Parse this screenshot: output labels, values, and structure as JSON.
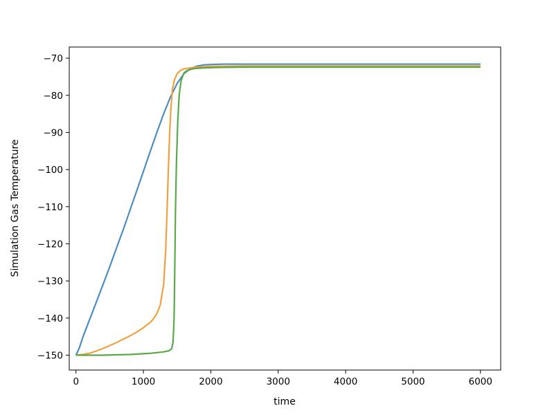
{
  "chart_data": {
    "type": "line",
    "title": "",
    "xlabel": "time",
    "ylabel": "Simulation Gas Temperature",
    "xlim": [
      -100,
      6300
    ],
    "ylim": [
      -154,
      -67
    ],
    "xticks": [
      0,
      1000,
      2000,
      3000,
      4000,
      5000,
      6000
    ],
    "yticks": [
      -70,
      -80,
      -90,
      -100,
      -110,
      -120,
      -130,
      -140,
      -150
    ],
    "xtick_labels": [
      "0",
      "1000",
      "2000",
      "3000",
      "4000",
      "5000",
      "6000"
    ],
    "ytick_labels": [
      "−70",
      "−80",
      "−90",
      "−100",
      "−110",
      "−120",
      "−130",
      "−140",
      "−150"
    ],
    "grid": false,
    "legend": "none",
    "series": [
      {
        "color": "#4c8dc1",
        "points": [
          [
            0,
            -150
          ],
          [
            50,
            -148
          ],
          [
            100,
            -145.2
          ],
          [
            200,
            -140.5
          ],
          [
            300,
            -135.8
          ],
          [
            400,
            -131
          ],
          [
            500,
            -126.2
          ],
          [
            600,
            -121.2
          ],
          [
            700,
            -116.2
          ],
          [
            800,
            -111
          ],
          [
            900,
            -105.8
          ],
          [
            1000,
            -100.5
          ],
          [
            1100,
            -95.2
          ],
          [
            1200,
            -90
          ],
          [
            1300,
            -85
          ],
          [
            1400,
            -80.5
          ],
          [
            1500,
            -76.8
          ],
          [
            1600,
            -74.2
          ],
          [
            1700,
            -72.8
          ],
          [
            1800,
            -72.1
          ],
          [
            1900,
            -71.8
          ],
          [
            2000,
            -71.7
          ],
          [
            2200,
            -71.6
          ],
          [
            2500,
            -71.6
          ],
          [
            3000,
            -71.6
          ],
          [
            4000,
            -71.6
          ],
          [
            5000,
            -71.6
          ],
          [
            6000,
            -71.6
          ]
        ]
      },
      {
        "color": "#f0a040",
        "points": [
          [
            0,
            -150
          ],
          [
            100,
            -149.8
          ],
          [
            200,
            -149.5
          ],
          [
            300,
            -148.9
          ],
          [
            400,
            -148.2
          ],
          [
            500,
            -147.4
          ],
          [
            600,
            -146.6
          ],
          [
            700,
            -145.7
          ],
          [
            800,
            -144.8
          ],
          [
            900,
            -143.8
          ],
          [
            1000,
            -142.6
          ],
          [
            1100,
            -141.2
          ],
          [
            1150,
            -140.2
          ],
          [
            1200,
            -138.8
          ],
          [
            1250,
            -136.5
          ],
          [
            1300,
            -131
          ],
          [
            1330,
            -122
          ],
          [
            1350,
            -112
          ],
          [
            1370,
            -100
          ],
          [
            1390,
            -90
          ],
          [
            1410,
            -83
          ],
          [
            1430,
            -78.5
          ],
          [
            1460,
            -75.8
          ],
          [
            1500,
            -74.2
          ],
          [
            1550,
            -73.3
          ],
          [
            1600,
            -72.9
          ],
          [
            1700,
            -72.6
          ],
          [
            1800,
            -72.4
          ],
          [
            2000,
            -72.2
          ],
          [
            2500,
            -72.1
          ],
          [
            3000,
            -72.1
          ],
          [
            4000,
            -72.1
          ],
          [
            5000,
            -72.1
          ],
          [
            6000,
            -72.1
          ]
        ]
      },
      {
        "color": "#5aa84a",
        "points": [
          [
            0,
            -150
          ],
          [
            200,
            -150
          ],
          [
            400,
            -150
          ],
          [
            600,
            -149.9
          ],
          [
            800,
            -149.8
          ],
          [
            1000,
            -149.6
          ],
          [
            1100,
            -149.5
          ],
          [
            1200,
            -149.3
          ],
          [
            1300,
            -149.1
          ],
          [
            1380,
            -148.8
          ],
          [
            1420,
            -148.2
          ],
          [
            1440,
            -146.5
          ],
          [
            1455,
            -140
          ],
          [
            1465,
            -128
          ],
          [
            1475,
            -112
          ],
          [
            1490,
            -98
          ],
          [
            1510,
            -87
          ],
          [
            1530,
            -80
          ],
          [
            1560,
            -76
          ],
          [
            1600,
            -74
          ],
          [
            1650,
            -73.3
          ],
          [
            1750,
            -72.8
          ],
          [
            1900,
            -72.6
          ],
          [
            2100,
            -72.5
          ],
          [
            2500,
            -72.4
          ],
          [
            3000,
            -72.4
          ],
          [
            4000,
            -72.4
          ],
          [
            5000,
            -72.4
          ],
          [
            6000,
            -72.4
          ]
        ]
      }
    ]
  }
}
